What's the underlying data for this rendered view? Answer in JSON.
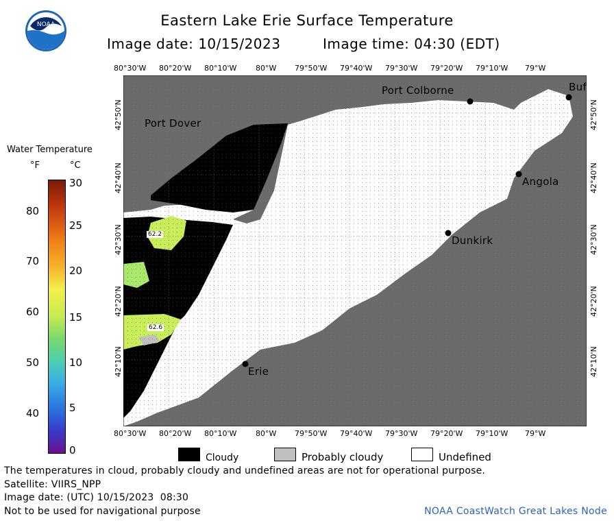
{
  "header": {
    "title": "Eastern Lake Erie Surface Temperature",
    "image_date": "Image date: 10/15/2023",
    "image_time": "Image time: 04:30 (EDT)",
    "logo_text": "NOAA"
  },
  "map": {
    "lon_labels": [
      "80°30'W",
      "80°20'W",
      "80°10'W",
      "80°W",
      "79°50'W",
      "79°40'W",
      "79°30'W",
      "79°20'W",
      "79°10'W",
      "79°W"
    ],
    "lat_labels": [
      "42°50'N",
      "42°40'N",
      "42°30'N",
      "42°20'N",
      "42°10'N"
    ],
    "places": {
      "port_colborne": "Port Colborne",
      "port_dover": "Port Dover",
      "angola": "Angola",
      "dunkirk": "Dunkirk",
      "erie": "Erie",
      "buffalo": "Buf"
    },
    "temp_labels": [
      "62.2",
      "62.6"
    ]
  },
  "scale": {
    "title": "Water Temperature",
    "unit_f": "°F",
    "unit_c": "°C",
    "f_ticks": [
      "80",
      "70",
      "60",
      "50",
      "40"
    ],
    "c_ticks": [
      "30",
      "25",
      "20",
      "15",
      "10",
      "5",
      "0"
    ]
  },
  "legend": {
    "cloudy": "Cloudy",
    "probably_cloudy": "Probably cloudy",
    "undefined": "Undefined"
  },
  "footer": {
    "disclaimer": "The temperatures in cloud, probably cloudy and undefined areas are not for operational purpose.",
    "satellite": "Satellite: VIIRS_NPP",
    "utc_date": "Image date: (UTC) 10/15/2023  08:30",
    "nav_warning": "Not to be used for navigational purpose",
    "credit": "NOAA CoastWatch Great Lakes Node"
  },
  "colors": {
    "land": "#6b6b6b",
    "cloud": "#000000",
    "undefined": "#ffffff",
    "probably_cloudy": "#c0c0c0",
    "warm_water": "#c8ef5a",
    "green_water": "#a8e86a"
  }
}
